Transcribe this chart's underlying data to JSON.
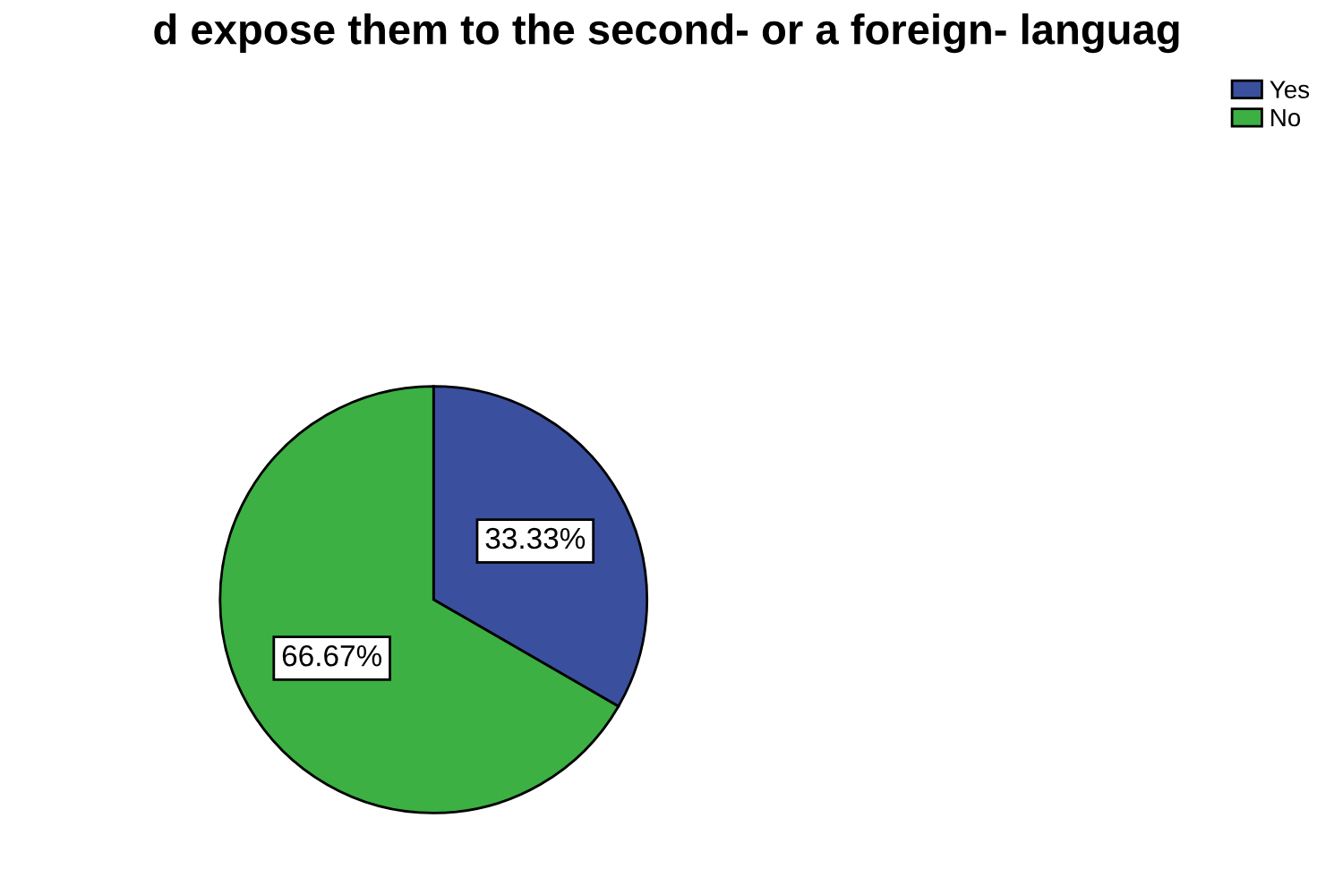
{
  "chart_data": {
    "type": "pie",
    "title": "d expose them to the second- or a foreign- languag",
    "categories": [
      "Yes",
      "No"
    ],
    "values": [
      33.33,
      66.67
    ],
    "colors": [
      "#3a4f9e",
      "#3cb043"
    ],
    "value_labels": [
      "33.33%",
      "66.67%"
    ],
    "legend": "top right"
  }
}
